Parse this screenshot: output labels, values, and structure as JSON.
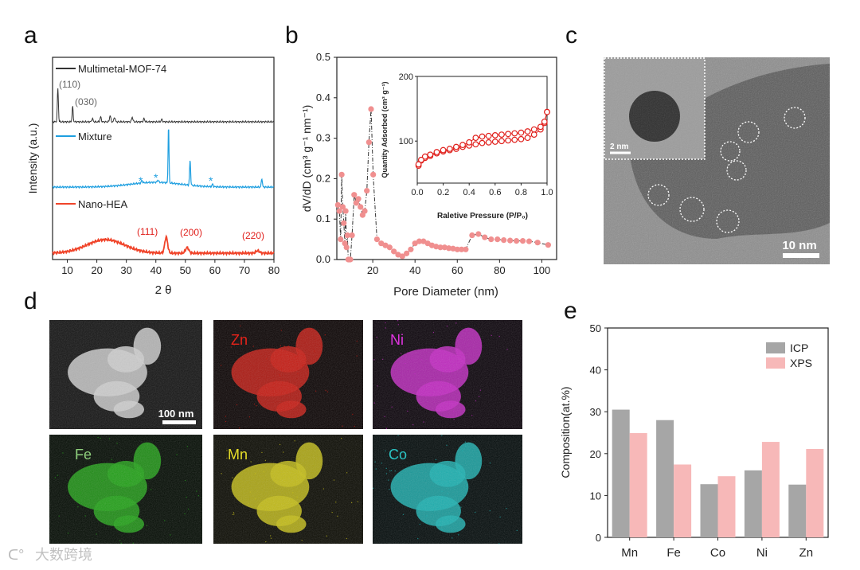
{
  "panels": {
    "a": "a",
    "b": "b",
    "c": "c",
    "d": "d",
    "e": "e"
  },
  "colors": {
    "black": "#333333",
    "blue": "#1e9fe0",
    "red": "#f0442a",
    "pink": "#f08f8f",
    "label_red": "#e0201c",
    "gray": "#a6a6a6",
    "lightpink": "#f7b8b8"
  },
  "panel_a": {
    "xlabel": "2 θ",
    "ylabel": "Intensity (a.u.)",
    "legend": {
      "mof": "Multimetal-MOF-74",
      "mixture": "Mixture",
      "hea": "Nano-HEA"
    },
    "peak_labels": {
      "p110": "(110)",
      "p030": "(030)",
      "p111": "(111)",
      "p200": "(200)",
      "p220": "(220)"
    },
    "star": "*"
  },
  "panel_b": {
    "ylabel": "dV/dD  (cm³ g⁻¹ nm⁻¹)",
    "xlabel": "Pore Diameter (nm)",
    "inset": {
      "ylabel": "Quantity Adsorbed (cm³ g⁻¹)",
      "xlabel": "Raletive Pressure (P/P₀)"
    }
  },
  "panel_c": {
    "inset_scale": "2 nm",
    "scale": "10 nm"
  },
  "panel_d": {
    "scale": "100 nm",
    "maps": [
      "Zn",
      "Ni",
      "Fe",
      "Mn",
      "Co"
    ]
  },
  "watermark": "大数跨境",
  "chart_data": [
    {
      "type": "line",
      "panel": "a",
      "title": "",
      "xlabel": "2 θ",
      "ylabel": "Intensity (a.u.)",
      "xlim": [
        5,
        80
      ],
      "x_ticks": [
        10,
        20,
        30,
        40,
        50,
        60,
        70,
        80
      ],
      "series": [
        {
          "name": "Multimetal-MOF-74",
          "peaks_2theta": [
            6.8,
            11.8,
            18.5,
            21.3,
            24.5,
            26.0,
            32.0,
            36.0,
            42.0
          ]
        },
        {
          "name": "Mixture",
          "peaks_2theta": [
            35.3,
            40.7,
            44.3,
            51.6,
            59.2,
            75.9
          ]
        },
        {
          "name": "Nano-HEA",
          "peaks_2theta": [
            43.5,
            50.6,
            74.5
          ],
          "broad_hump_2theta": 23
        }
      ]
    },
    {
      "type": "scatter",
      "panel": "b",
      "xlabel": "Pore Diameter (nm)",
      "ylabel": "dV/dD  (cm³ g⁻¹ nm⁻¹)",
      "xlim": [
        3,
        107
      ],
      "ylim": [
        0,
        0.5
      ],
      "x_ticks": [
        20,
        40,
        60,
        80,
        100
      ],
      "y_ticks": [
        0.0,
        0.1,
        0.2,
        0.3,
        0.4,
        0.5
      ],
      "x": [
        3.5,
        4.2,
        4.8,
        5.3,
        5.8,
        6.3,
        6.8,
        7.2,
        7.6,
        8.0,
        8.4,
        8.8,
        9.4,
        10.2,
        11.2,
        12.2,
        13.2,
        14.2,
        15.2,
        16.2,
        17.2,
        18.2,
        19.2,
        20.2,
        22.0,
        24.0,
        26.0,
        28.0,
        30.0,
        32.0,
        34.0,
        36.0,
        38.0,
        40.0,
        42.0,
        44.0,
        46.0,
        48.0,
        50.0,
        52.0,
        54.0,
        56.0,
        58.0,
        60.0,
        62.0,
        64.0,
        67.0,
        70.0,
        73.0,
        76.0,
        79.0,
        82.0,
        85.0,
        88.0,
        91.0,
        94.0,
        98.0,
        103.0
      ],
      "y": [
        0.135,
        0.12,
        0.05,
        0.21,
        0.13,
        0.09,
        0.04,
        0.12,
        0.03,
        0.06,
        0.0,
        0.0,
        0.0,
        0.06,
        0.16,
        0.14,
        0.15,
        0.13,
        0.11,
        0.12,
        0.17,
        0.29,
        0.372,
        0.21,
        0.05,
        0.04,
        0.035,
        0.03,
        0.02,
        0.012,
        0.008,
        0.015,
        0.025,
        0.04,
        0.045,
        0.045,
        0.04,
        0.035,
        0.032,
        0.03,
        0.03,
        0.028,
        0.027,
        0.025,
        0.025,
        0.025,
        0.06,
        0.063,
        0.055,
        0.05,
        0.05,
        0.048,
        0.047,
        0.046,
        0.046,
        0.045,
        0.042,
        0.036
      ]
    },
    {
      "type": "line",
      "panel": "b-inset",
      "xlabel": "Raletive Pressure (P/P₀)",
      "ylabel": "Quantity Adsorbed (cm³ g⁻¹)",
      "xlim": [
        0,
        1.0
      ],
      "ylim": [
        35,
        200
      ],
      "x_ticks": [
        0.0,
        0.2,
        0.4,
        0.6,
        0.8,
        1.0
      ],
      "y_ticks": [
        100,
        200
      ],
      "series": [
        {
          "name": "adsorption",
          "x": [
            0.01,
            0.03,
            0.06,
            0.1,
            0.15,
            0.2,
            0.25,
            0.3,
            0.35,
            0.4,
            0.45,
            0.5,
            0.55,
            0.6,
            0.65,
            0.7,
            0.75,
            0.8,
            0.85,
            0.9,
            0.95,
            0.98,
            1.0
          ],
          "y": [
            62,
            70,
            74,
            77,
            81,
            84,
            86,
            88,
            91,
            93,
            95,
            97,
            98,
            99,
            100,
            101,
            102,
            103,
            105,
            110,
            118,
            128,
            145
          ]
        },
        {
          "name": "desorption",
          "x": [
            1.0,
            0.98,
            0.95,
            0.9,
            0.85,
            0.8,
            0.75,
            0.7,
            0.65,
            0.6,
            0.55,
            0.5,
            0.45,
            0.4,
            0.35,
            0.3,
            0.25,
            0.2,
            0.15,
            0.1,
            0.06,
            0.03,
            0.01
          ],
          "y": [
            145,
            130,
            122,
            118,
            115,
            113,
            112,
            111,
            110,
            109,
            108,
            107,
            105,
            98,
            94,
            91,
            88,
            86,
            83,
            79,
            76,
            71,
            64
          ]
        }
      ]
    },
    {
      "type": "bar",
      "panel": "e",
      "title": "",
      "xlabel": "",
      "ylabel": "Composition(at.%)",
      "ylim": [
        0,
        50
      ],
      "y_ticks": [
        0,
        10,
        20,
        30,
        40,
        50
      ],
      "categories": [
        "Mn",
        "Fe",
        "Co",
        "Ni",
        "Zn"
      ],
      "series": [
        {
          "name": "ICP",
          "values": [
            30.5,
            28.0,
            12.7,
            16.0,
            12.6
          ]
        },
        {
          "name": "XPS",
          "values": [
            24.9,
            17.4,
            14.6,
            22.8,
            21.1
          ]
        }
      ],
      "legend": "top-right"
    }
  ]
}
